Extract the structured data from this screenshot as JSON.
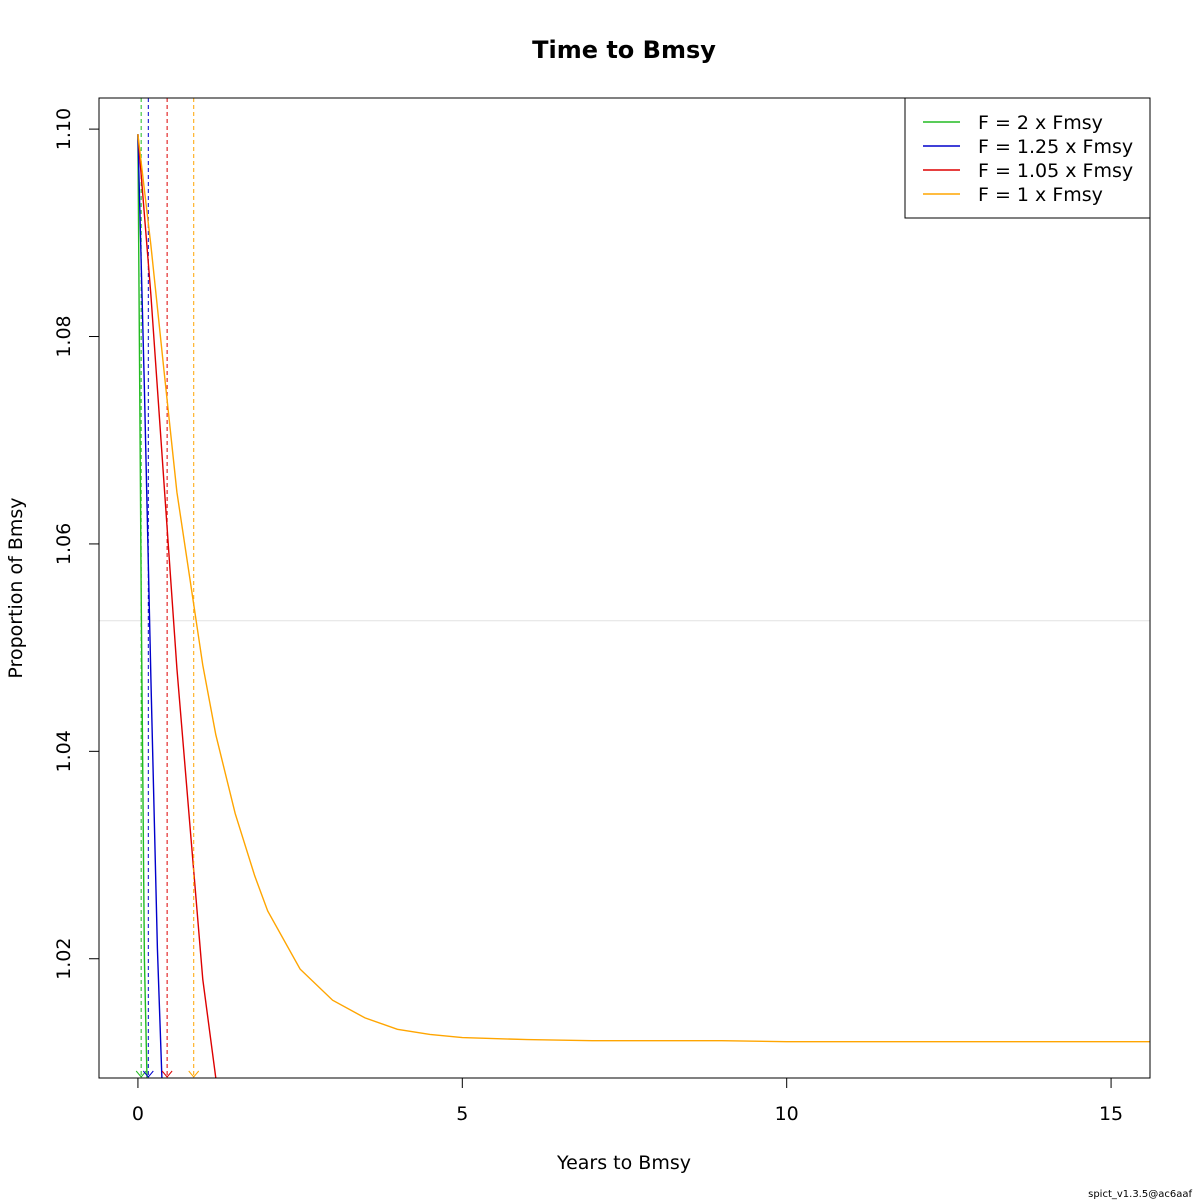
{
  "chart_data": {
    "type": "line",
    "title": "Time to Bmsy",
    "xlabel": "Years to Bmsy",
    "ylabel": "Proportion of Bmsy",
    "xlim": [
      -0.6,
      15.6
    ],
    "ylim": [
      1.0085,
      1.103
    ],
    "xticks": [
      0,
      5,
      10,
      15
    ],
    "yticks": [
      1.02,
      1.04,
      1.06,
      1.08,
      1.1
    ],
    "xtick_labels": [
      "0",
      "5",
      "10",
      "15"
    ],
    "ytick_labels": [
      "1.02",
      "1.04",
      "1.06",
      "1.08",
      "1.10"
    ],
    "reference_line_y": 1.0526,
    "reference_line_color": "#e6e6e6",
    "legend_position": "top-right",
    "series": [
      {
        "name": "F = 2 x Fmsy",
        "color": "#22bb22",
        "time_to_bmsy": 0.05,
        "x": [
          0,
          0.05,
          0.1,
          0.14
        ],
        "y": [
          1.0995,
          1.055,
          1.02,
          1.0085
        ]
      },
      {
        "name": "F = 1.25 x Fmsy",
        "color": "#0000cc",
        "time_to_bmsy": 0.16,
        "x": [
          0,
          0.1,
          0.2,
          0.3,
          0.37
        ],
        "y": [
          1.0995,
          1.075,
          1.047,
          1.021,
          1.0085
        ]
      },
      {
        "name": "F = 1.05 x Fmsy",
        "color": "#dd0000",
        "time_to_bmsy": 0.45,
        "x": [
          0,
          0.2,
          0.4,
          0.6,
          0.8,
          1.0,
          1.2
        ],
        "y": [
          1.0995,
          1.084,
          1.066,
          1.048,
          1.033,
          1.018,
          1.0085
        ]
      },
      {
        "name": "F = 1 x Fmsy",
        "color": "#ffa500",
        "time_to_bmsy": 0.86,
        "x": [
          0,
          0.2,
          0.4,
          0.6,
          0.8,
          1.0,
          1.2,
          1.5,
          1.8,
          2.0,
          2.5,
          3.0,
          3.5,
          4.0,
          4.5,
          5.0,
          6.0,
          7.0,
          8.0,
          9.0,
          10.0,
          12.0,
          14.0,
          15.6
        ],
        "y": [
          1.0995,
          1.0888,
          1.0768,
          1.065,
          1.0567,
          1.0483,
          1.0416,
          1.034,
          1.028,
          1.0246,
          1.019,
          1.016,
          1.0143,
          1.0132,
          1.0127,
          1.0124,
          1.0122,
          1.0121,
          1.0121,
          1.0121,
          1.012,
          1.012,
          1.012,
          1.012
        ]
      }
    ],
    "footnote": "spict_v1.3.5@ac6aaf"
  }
}
